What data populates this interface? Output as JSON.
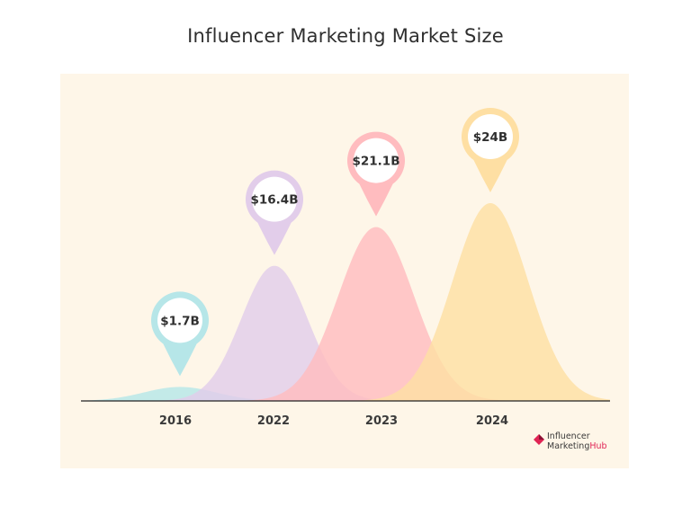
{
  "title": "Influencer Marketing Market Size",
  "chart_data": {
    "type": "area",
    "title": "Influencer Marketing Market Size",
    "categories": [
      "2016",
      "2022",
      "2023",
      "2024"
    ],
    "values": [
      1.7,
      16.4,
      21.1,
      24
    ],
    "labels": [
      "$1.7B",
      "$16.4B",
      "$21.1B",
      "$24B"
    ],
    "colors": [
      "#b6e6e8",
      "#e2cdea",
      "#ffbcbf",
      "#fedfa3"
    ],
    "pin_colors": [
      "#b6e6e8",
      "#e2cdea",
      "#ffbcbf",
      "#fedfa3"
    ],
    "grid": false,
    "legend": "none"
  },
  "logo": {
    "line1": "Influencer",
    "line2_a": "Marketing",
    "line2_b": "Hub",
    "brand_color": "#e02454"
  }
}
